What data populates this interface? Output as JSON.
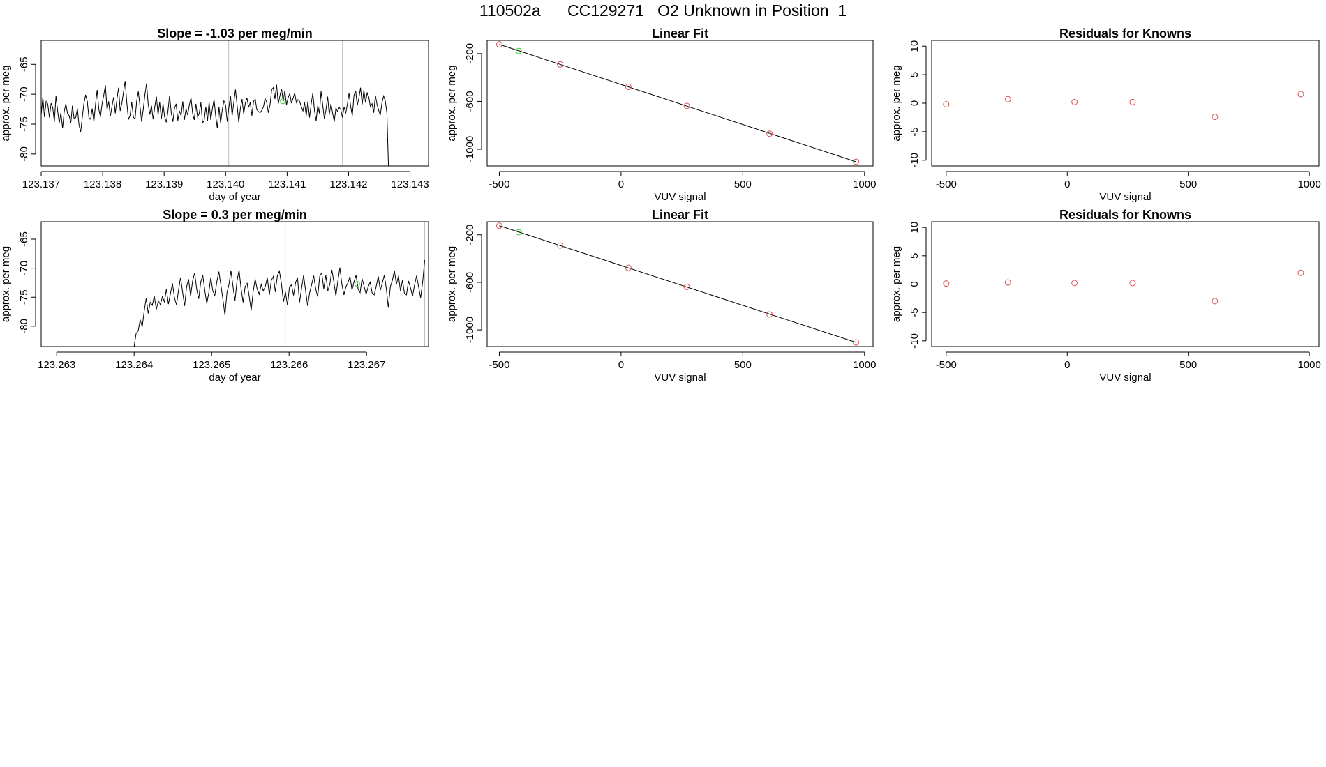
{
  "figure": {
    "title": "110502a      CC129271   O2 Unknown in Position  1"
  },
  "colors": {
    "line": "#000000",
    "point_known": "#d9534f",
    "point_unknown": "#33cc33",
    "vline": "#bdbdbd",
    "axis": "#000000"
  },
  "chart_data": [
    {
      "type": "line",
      "title": "Slope =  -1.03  per meg/min",
      "xlabel": "day of year",
      "ylabel": "approx. per meg",
      "xlim": [
        123.137,
        123.1433
      ],
      "ylim": [
        -82,
        -61
      ],
      "x_ticks": [
        {
          "value": 123.137,
          "label": "123.137"
        },
        {
          "value": 123.138,
          "label": "123.138"
        },
        {
          "value": 123.139,
          "label": "123.139"
        },
        {
          "value": 123.14,
          "label": "123.140"
        },
        {
          "value": 123.141,
          "label": "123.141"
        },
        {
          "value": 123.142,
          "label": "123.142"
        },
        {
          "value": 123.143,
          "label": "123.143"
        }
      ],
      "y_ticks": [
        {
          "value": -65,
          "label": "-65"
        },
        {
          "value": -70,
          "label": "-70"
        },
        {
          "value": -75,
          "label": "-75"
        },
        {
          "value": -80,
          "label": "-80"
        }
      ],
      "vlines": [
        123.14005,
        123.1419
      ],
      "x_start": 123.137,
      "x_end": 123.14265,
      "y": [
        -73.5,
        -70.5,
        -73.8,
        -71.2,
        -71.6,
        -73.9,
        -71.5,
        -72.2,
        -74.6,
        -70.3,
        -72.8,
        -74.8,
        -73.1,
        -75.7,
        -72.9,
        -71.6,
        -73.2,
        -73.6,
        -74.8,
        -71.9,
        -74.1,
        -73.9,
        -72.4,
        -75.2,
        -76.3,
        -73.8,
        -71.5,
        -70.1,
        -71.2,
        -73.9,
        -74.2,
        -72.4,
        -74.6,
        -71.8,
        -69.3,
        -72.5,
        -73.8,
        -71.6,
        -70.2,
        -68.5,
        -72.6,
        -71.2,
        -73.7,
        -72.1,
        -70.5,
        -73.2,
        -70.9,
        -68.9,
        -72.8,
        -71.5,
        -69.7,
        -67.8,
        -71.4,
        -74.2,
        -73.6,
        -71.3,
        -73.8,
        -74.2,
        -71.2,
        -69.5,
        -71.9,
        -74.6,
        -72.5,
        -70.1,
        -68.2,
        -71.6,
        -73.4,
        -71.9,
        -74.2,
        -72.1,
        -70.4,
        -73.5,
        -71.3,
        -74.2,
        -71.6,
        -73.8,
        -74.7,
        -72.9,
        -70.2,
        -73.1,
        -74.6,
        -72.3,
        -71.6,
        -74.4,
        -72.8,
        -73.6,
        -71.2,
        -74.3,
        -72.4,
        -73.5,
        -71.8,
        -70.6,
        -73.2,
        -74.3,
        -71.6,
        -73.8,
        -73.2,
        -71.4,
        -74.8,
        -74.4,
        -72.1,
        -74.5,
        -71.3,
        -74.3,
        -72.4,
        -70.9,
        -73.6,
        -75.7,
        -72.1,
        -74.8,
        -72.6,
        -71.1,
        -71.8,
        -74.6,
        -72.2,
        -70.3,
        -73.6,
        -71.4,
        -69.2,
        -71.8,
        -74.7,
        -72.4,
        -70.8,
        -73.3,
        -71.5,
        -70.6,
        -72.2,
        -71.4,
        -73.6,
        -71.2,
        -70.8,
        -72.6,
        -72.9,
        -73.1,
        -72.7,
        -72.1,
        -70.7,
        -71.4,
        -73.1,
        -71.8,
        -69.2,
        -68.9,
        -70.8,
        -68.4,
        -71.6,
        -70.3,
        -69.1,
        -71.2,
        -69.4,
        -71.8,
        -70.6,
        -69.9,
        -71.5,
        -70.7,
        -69.8,
        -71.4,
        -70.9,
        -71.2,
        -72.1,
        -72.8,
        -71.4,
        -73.6,
        -71.2,
        -73.9,
        -71.6,
        -69.8,
        -72.7,
        -74.5,
        -71.9,
        -73.2,
        -69.5,
        -71.8,
        -74.1,
        -72.6,
        -70.4,
        -73.4,
        -71.6,
        -73.1,
        -74.6,
        -72.3,
        -72.9,
        -72.2,
        -72.6,
        -73.9,
        -72.1,
        -73.2,
        -71.6,
        -69.8,
        -72.1,
        -73.6,
        -70.2,
        -69.4,
        -71.9,
        -70.6,
        -68.9,
        -71.7,
        -69.3,
        -71.4,
        -69.8,
        -70.5,
        -72.1,
        -71.6,
        -73.1,
        -70.2,
        -71.7,
        -72.7,
        -73.5,
        -71.4,
        -70.3,
        -71.1,
        -73.2,
        -82.5
      ],
      "marker": {
        "x": 123.14093,
        "y": -71.2
      }
    },
    {
      "type": "scatter",
      "title": "Linear Fit",
      "xlabel": "VUV signal",
      "ylabel": "approx. per meg",
      "xlim": [
        -550,
        1035
      ],
      "ylim": [
        -1140,
        -90
      ],
      "x_ticks": [
        {
          "value": -500,
          "label": "-500"
        },
        {
          "value": 0,
          "label": "0"
        },
        {
          "value": 500,
          "label": "500"
        },
        {
          "value": 1000,
          "label": "1000"
        }
      ],
      "y_ticks": [
        {
          "value": -200,
          "label": "-200"
        },
        {
          "value": -600,
          "label": "-600"
        },
        {
          "value": -1000,
          "label": "-1000"
        }
      ],
      "fit_line": {
        "x": [
          -500,
          965
        ],
        "y": [
          -123,
          -1105
        ]
      },
      "known_points": {
        "x": [
          -500,
          -250,
          30,
          270,
          610,
          965
        ],
        "y": [
          -123,
          -290,
          -478,
          -638,
          -870,
          -1105
        ]
      },
      "unknown_point": {
        "x": -420,
        "y": -178
      }
    },
    {
      "type": "scatter",
      "title": "Residuals for Knowns",
      "xlabel": "VUV signal",
      "ylabel": "approx. per meg",
      "xlim": [
        -560,
        1040
      ],
      "ylim": [
        -11,
        11
      ],
      "x_ticks": [
        {
          "value": -500,
          "label": "-500"
        },
        {
          "value": 0,
          "label": "0"
        },
        {
          "value": 500,
          "label": "500"
        },
        {
          "value": 1000,
          "label": "1000"
        }
      ],
      "y_ticks": [
        {
          "value": 10,
          "label": "10"
        },
        {
          "value": 5,
          "label": "5"
        },
        {
          "value": 0,
          "label": "0"
        },
        {
          "value": -5,
          "label": "-5"
        },
        {
          "value": -10,
          "label": "-10"
        }
      ],
      "known_points": {
        "x": [
          -500,
          -245,
          30,
          270,
          610,
          965
        ],
        "y": [
          -0.2,
          0.7,
          0.2,
          0.2,
          -2.4,
          1.6
        ]
      }
    },
    {
      "type": "line",
      "title": "Slope =  0.3  per meg/min",
      "xlabel": "day of year",
      "ylabel": "approx. per meg",
      "xlim": [
        123.2628,
        123.2678
      ],
      "ylim": [
        -83.5,
        -62
      ],
      "x_ticks": [
        {
          "value": 123.263,
          "label": "123.263"
        },
        {
          "value": 123.264,
          "label": "123.264"
        },
        {
          "value": 123.265,
          "label": "123.265"
        },
        {
          "value": 123.266,
          "label": "123.266"
        },
        {
          "value": 123.267,
          "label": "123.267"
        }
      ],
      "y_ticks": [
        {
          "value": -65,
          "label": "-65"
        },
        {
          "value": -70,
          "label": "-70"
        },
        {
          "value": -75,
          "label": "-75"
        },
        {
          "value": -80,
          "label": "-80"
        }
      ],
      "vlines": [
        123.26595,
        123.26775
      ],
      "x_start": 123.264,
      "x_end": 123.26775,
      "y": [
        -83.5,
        -81.2,
        -80.8,
        -78.9,
        -80.1,
        -77.3,
        -75.2,
        -77.8,
        -75.9,
        -76.4,
        -74.8,
        -77.1,
        -75.6,
        -76.3,
        -74.9,
        -75.8,
        -73.6,
        -76.2,
        -74.4,
        -72.6,
        -75.1,
        -76.3,
        -73.8,
        -71.6,
        -74.1,
        -76.5,
        -73.2,
        -71.9,
        -74.8,
        -72.2,
        -70.8,
        -73.6,
        -75.3,
        -72.4,
        -71.2,
        -73.8,
        -76.1,
        -74.2,
        -71.6,
        -73.9,
        -74.7,
        -72.3,
        -70.6,
        -72.9,
        -75.4,
        -78.1,
        -74.2,
        -72.8,
        -70.4,
        -73.1,
        -75.6,
        -72.2,
        -70.3,
        -73.5,
        -75.9,
        -73.2,
        -72.6,
        -74.8,
        -77.3,
        -74.1,
        -71.9,
        -73.6,
        -74.5,
        -72.8,
        -73.9,
        -73.2,
        -71.6,
        -74.6,
        -72.1,
        -71.4,
        -74.1,
        -71.3,
        -70.5,
        -72.6,
        -75.8,
        -74.1,
        -76.4,
        -73.2,
        -72.9,
        -74.7,
        -72.5,
        -71.6,
        -75.9,
        -73.5,
        -71.2,
        -73.9,
        -76.5,
        -74.2,
        -72.8,
        -71.3,
        -73.6,
        -74.9,
        -71.4,
        -70.8,
        -73.6,
        -71.2,
        -73.9,
        -72.8,
        -70.3,
        -72.4,
        -74.8,
        -72.1,
        -69.9,
        -72.8,
        -74.6,
        -73.2,
        -72.5,
        -71.4,
        -73.8,
        -72.3,
        -71.2,
        -73.6,
        -74.2,
        -71.8,
        -73.1,
        -74.5,
        -73.2,
        -72.4,
        -74.3,
        -74.6,
        -73.1,
        -71.4,
        -73.8,
        -72.6,
        -71.2,
        -73.5,
        -76.8,
        -73.2,
        -72.1,
        -70.4,
        -72.8,
        -71.3,
        -73.9,
        -72.1,
        -74.3,
        -74.6,
        -72.2,
        -73.4,
        -74.8,
        -72.9,
        -71.3,
        -73.2,
        -75.1,
        -72.4,
        -68.6
      ],
      "marker": {
        "x": 123.26688,
        "y": -72.7
      }
    },
    {
      "type": "scatter",
      "title": "Linear Fit",
      "xlabel": "VUV signal",
      "ylabel": "approx. per meg",
      "xlim": [
        -550,
        1035
      ],
      "ylim": [
        -1140,
        -90
      ],
      "x_ticks": [
        {
          "value": -500,
          "label": "-500"
        },
        {
          "value": 0,
          "label": "0"
        },
        {
          "value": 500,
          "label": "500"
        },
        {
          "value": 1000,
          "label": "1000"
        }
      ],
      "y_ticks": [
        {
          "value": -200,
          "label": "-200"
        },
        {
          "value": -600,
          "label": "-600"
        },
        {
          "value": -1000,
          "label": "-1000"
        }
      ],
      "fit_line": {
        "x": [
          -500,
          965
        ],
        "y": [
          -123,
          -1105
        ]
      },
      "known_points": {
        "x": [
          -500,
          -250,
          30,
          270,
          610,
          965
        ],
        "y": [
          -123,
          -290,
          -478,
          -638,
          -870,
          -1105
        ]
      },
      "unknown_point": {
        "x": -420,
        "y": -178
      }
    },
    {
      "type": "scatter",
      "title": "Residuals for Knowns",
      "xlabel": "VUV signal",
      "ylabel": "approx. per meg",
      "xlim": [
        -560,
        1040
      ],
      "ylim": [
        -11,
        11
      ],
      "x_ticks": [
        {
          "value": -500,
          "label": "-500"
        },
        {
          "value": 0,
          "label": "0"
        },
        {
          "value": 500,
          "label": "500"
        },
        {
          "value": 1000,
          "label": "1000"
        }
      ],
      "y_ticks": [
        {
          "value": 10,
          "label": "10"
        },
        {
          "value": 5,
          "label": "5"
        },
        {
          "value": 0,
          "label": "0"
        },
        {
          "value": -5,
          "label": "-5"
        },
        {
          "value": -10,
          "label": "-10"
        }
      ],
      "known_points": {
        "x": [
          -500,
          -245,
          30,
          270,
          610,
          965
        ],
        "y": [
          0.1,
          0.3,
          0.2,
          0.2,
          -3.0,
          2.0
        ]
      }
    }
  ]
}
